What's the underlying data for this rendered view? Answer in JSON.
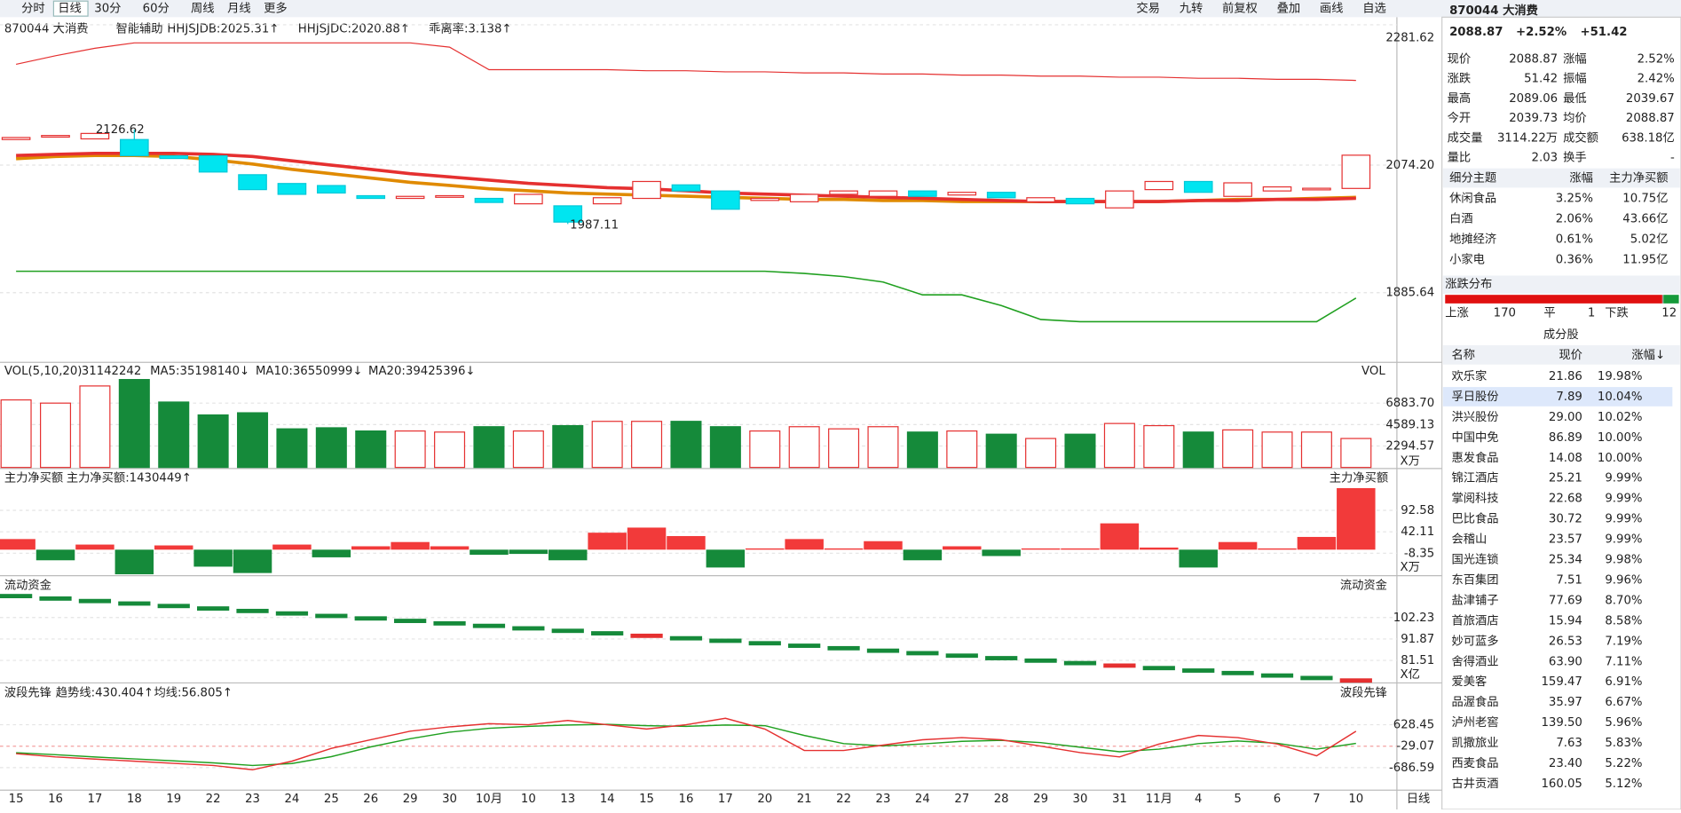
{
  "toolbar": {
    "left": [
      "分时",
      "日线",
      "30分",
      "60分",
      "周线",
      "月线",
      "更多"
    ],
    "right": [
      "交易",
      "九转",
      "前复权",
      "叠加",
      "画线",
      "自选"
    ]
  },
  "main": {
    "code_label": "870044 大消费",
    "assist": "智能辅助",
    "legend": [
      {
        "text": "HHJSJDB:2025.31↑",
        "color": "#e08a00"
      },
      {
        "text": "HHJSJDC:2020.88↑",
        "color": "#e53030"
      },
      {
        "text": "乖离率:3.138↑",
        "color": "#e08a00"
      }
    ],
    "price_ticks": [
      2281.62,
      {
        "value": 2074.2,
        "label": "2074.20"
      },
      1885.64
    ],
    "high_label": "2126.62",
    "high": 2126.62,
    "low_label": "1987.11",
    "low": 1987.11,
    "candles": [
      [
        2112,
        2115
      ],
      [
        2116,
        2118
      ],
      [
        2113,
        2121
      ],
      [
        2112,
        2088
      ],
      [
        2088,
        2084
      ],
      [
        2088,
        2064
      ],
      [
        2060,
        2038
      ],
      [
        2047,
        2031
      ],
      [
        2044,
        2033
      ],
      [
        2029,
        2025
      ],
      [
        2025,
        2028
      ],
      [
        2027,
        2029
      ],
      [
        2025,
        2019
      ],
      [
        2017,
        2031
      ],
      [
        2014,
        1990
      ],
      [
        2017,
        2026
      ],
      [
        2025,
        2050
      ],
      [
        2045,
        2036
      ],
      [
        2036,
        2009
      ],
      [
        2022,
        2025
      ],
      [
        2020,
        2031
      ],
      [
        2031,
        2036
      ],
      [
        2028,
        2036
      ],
      [
        2036,
        2028
      ],
      [
        2030,
        2034
      ],
      [
        2034,
        2026
      ],
      [
        2020,
        2026
      ],
      [
        2025,
        2017
      ],
      [
        2011,
        2036
      ],
      [
        2038,
        2050
      ],
      [
        2050,
        2034
      ],
      [
        2028,
        2048
      ],
      [
        2036,
        2042
      ],
      [
        2038,
        2040
      ],
      [
        2039.73,
        2088.87
      ]
    ],
    "upper": [
      2223.2,
      2235.9,
      2246.9,
      2254.9,
      2254.9,
      2254.9,
      2254.9,
      2254.9,
      2254.9,
      2254.9,
      2254.9,
      2248.6,
      2215.3,
      2215.3,
      2215.3,
      2215.3,
      2213.7,
      2213.7,
      2212.1,
      2212.1,
      2210.5,
      2210.5,
      2208.9,
      2208.9,
      2207.3,
      2207.3,
      2205.8,
      2205.8,
      2204.2,
      2204.2,
      2202.6,
      2202.6,
      2201.0,
      2201.0,
      2199.4
    ],
    "lower": [
      1917.3,
      1917.3,
      1917.3,
      1917.3,
      1917.3,
      1917.3,
      1917.3,
      1917.3,
      1917.3,
      1917.3,
      1917.3,
      1917.3,
      1917.3,
      1917.3,
      1917.3,
      1917.3,
      1917.3,
      1917.3,
      1917.3,
      1917.3,
      1914.1,
      1909.4,
      1901.4,
      1882.4,
      1882.4,
      1866.6,
      1846.0,
      1842.8,
      1842.8,
      1842.8,
      1842.8,
      1842.8,
      1842.8,
      1842.8,
      1877.7
    ],
    "ma1": [
      2088.5,
      2090.0,
      2091.6,
      2091.6,
      2091.6,
      2090.0,
      2086.9,
      2080.5,
      2074.2,
      2067.9,
      2061.5,
      2056.8,
      2052.0,
      2047.3,
      2044.1,
      2040.9,
      2039.3,
      2036.2,
      2033.0,
      2031.4,
      2029.8,
      2028.2,
      2026.6,
      2025.1,
      2023.5,
      2021.9,
      2020.3,
      2020.3,
      2020.3,
      2020.3,
      2021.9,
      2021.9,
      2023.5,
      2023.5,
      2025.1
    ],
    "ma2": [
      2083.7,
      2086.9,
      2088.5,
      2088.5,
      2086.9,
      2082.1,
      2075.8,
      2067.9,
      2061.5,
      2055.2,
      2048.8,
      2044.1,
      2039.3,
      2036.2,
      2033.0,
      2031.4,
      2029.8,
      2028.2,
      2026.6,
      2025.1,
      2023.5,
      2023.5,
      2021.9,
      2021.9,
      2020.3,
      2020.3,
      2020.3,
      2020.3,
      2020.3,
      2020.3,
      2021.9,
      2023.5,
      2023.5,
      2025.1,
      2026.6
    ]
  },
  "vol": {
    "label": "VOL(5,10,20)",
    "value": "31142242",
    "legend": [
      {
        "text": "MA5:35198140↓",
        "color": "#e08a00"
      },
      {
        "text": "MA10:36550999↓",
        "color": "#d020d0"
      },
      {
        "text": "MA20:39425396↓",
        "color": "#20a020"
      }
    ],
    "right_label": "VOL",
    "unit": "X万",
    "ticks": [
      {
        "value": 6883.7,
        "label": "6883.70"
      },
      4589.13,
      2294.57
    ],
    "values": [
      7228,
      6884,
      8719,
      9408,
      6999,
      5622,
      5851,
      4130,
      4245,
      3901,
      3901,
      3786,
      4360,
      3901,
      4474,
      4933,
      4933,
      4933,
      4360,
      3901,
      4360,
      4130,
      4360,
      3786,
      3901,
      3557,
      3098,
      3557,
      4704,
      4474,
      3786,
      4016,
      3786,
      3786,
      3098
    ]
  },
  "net": {
    "label": "主力净买额",
    "legend": "主力净买额:1430449↑",
    "right_label": "主力净买额",
    "unit": "X万",
    "ticks": [
      92.58,
      42.11,
      -8.35
    ],
    "values": [
      25,
      -25,
      12,
      -58,
      10,
      -40,
      -55,
      12,
      -18,
      8,
      18,
      8,
      -12,
      -10,
      -25,
      40,
      52,
      32,
      -42,
      3,
      25,
      3,
      20,
      -25,
      8,
      -15,
      3,
      3,
      62,
      5,
      -42,
      18,
      3,
      30,
      145
    ]
  },
  "flow": {
    "label": "流动资金",
    "right_label": "流动资金",
    "unit": "X亿",
    "ticks": [
      102.23,
      91.87,
      81.51
    ],
    "values": [
      112.6,
      111.4,
      110.2,
      109.0,
      107.8,
      106.6,
      105.4,
      104.2,
      103.0,
      101.8,
      100.6,
      99.4,
      98.2,
      97.0,
      95.8,
      94.6,
      93.4,
      92.2,
      91.0,
      89.8,
      88.6,
      87.4,
      86.2,
      85.0,
      83.8,
      82.6,
      81.4,
      80.2,
      79.0,
      77.8,
      76.6,
      75.4,
      74.2,
      73.0,
      71.8
    ]
  },
  "wave": {
    "label": "波段先锋",
    "right_label": "波段先锋",
    "legend": [
      {
        "text": "趋势线:430.404↑",
        "color": "#e53030"
      },
      {
        "text": "均线:56.805↑",
        "color": "#20a020"
      }
    ],
    "ticks": [
      628.45,
      -29.07,
      -686.59
    ],
    "trend": [
      -259,
      -358,
      -424,
      -489,
      -555,
      -621,
      -752,
      -489,
      -95,
      168,
      431,
      563,
      661,
      628,
      760,
      628,
      497,
      628,
      826,
      497,
      -161,
      -161,
      4,
      168,
      234,
      168,
      -29,
      -226,
      -358,
      37,
      300,
      234,
      37,
      -325,
      430.404
    ],
    "avg": [
      -230,
      -290,
      -360,
      -420,
      -480,
      -540,
      -620,
      -560,
      -350,
      -50,
      200,
      400,
      520,
      580,
      620,
      640,
      600,
      580,
      620,
      600,
      300,
      50,
      -20,
      40,
      120,
      150,
      80,
      -60,
      -200,
      -120,
      50,
      130,
      60,
      -120,
      56.805
    ]
  },
  "dates": [
    "15",
    "16",
    "17",
    "18",
    "19",
    "22",
    "23",
    "24",
    "25",
    "26",
    "29",
    "30",
    "10月",
    "10",
    "13",
    "14",
    "15",
    "16",
    "17",
    "20",
    "21",
    "22",
    "23",
    "24",
    "27",
    "28",
    "29",
    "30",
    "31",
    "11月",
    "4",
    "5",
    "6",
    "7",
    "10"
  ],
  "period_label": "日线",
  "quote": {
    "name": "870044 大消费",
    "price": "2088.87",
    "pct": "+2.52%",
    "chg": "+51.42",
    "fields": [
      [
        "现价",
        "2088.87",
        "涨幅",
        "2.52%"
      ],
      [
        "涨跌",
        "51.42",
        "振幅",
        "2.42%"
      ],
      [
        "最高",
        "2089.06",
        "最低",
        "2039.67"
      ],
      [
        "今开",
        "2039.73",
        "均价",
        "2088.87"
      ],
      [
        "成交量",
        "3114.22万",
        "成交额",
        "638.18亿"
      ],
      [
        "量比",
        "2.03",
        "换手",
        "-"
      ]
    ],
    "themes": {
      "header": [
        "细分主题",
        "涨幅",
        "主力净买额"
      ],
      "rows": [
        [
          "休闲食品",
          "3.25%",
          "10.75亿"
        ],
        [
          "白酒",
          "2.06%",
          "43.66亿"
        ],
        [
          "地摊经济",
          "0.61%",
          "5.02亿"
        ],
        [
          "小家电",
          "0.36%",
          "11.95亿"
        ]
      ]
    },
    "dist": {
      "title": "涨跌分布",
      "up_label": "上涨",
      "up": 170,
      "flat_label": "平",
      "flat": 1,
      "down_label": "下跌",
      "down": 12
    },
    "stocks": {
      "title": "成分股",
      "header": [
        "名称",
        "现价",
        "涨幅↓"
      ],
      "rows": [
        {
          "name": "欢乐家",
          "price": "21.86",
          "pct": "19.98%",
          "color": "#2a6ad8"
        },
        {
          "name": "孚日股份",
          "price": "7.89",
          "pct": "10.04%",
          "color": "#2a6ad8"
        },
        {
          "name": "洪兴股份",
          "price": "29.00",
          "pct": "10.02%",
          "color": "#222"
        },
        {
          "name": "中国中免",
          "price": "86.89",
          "pct": "10.00%",
          "color": "#222"
        },
        {
          "name": "惠发食品",
          "price": "14.08",
          "pct": "10.00%",
          "color": "#1a9a3a"
        },
        {
          "name": "锦江酒店",
          "price": "25.21",
          "pct": "9.99%",
          "color": "#222"
        },
        {
          "name": "掌阅科技",
          "price": "22.68",
          "pct": "9.99%",
          "color": "#2a6ad8"
        },
        {
          "name": "巴比食品",
          "price": "30.72",
          "pct": "9.99%",
          "color": "#222"
        },
        {
          "name": "会稽山",
          "price": "23.57",
          "pct": "9.99%",
          "color": "#2a6ad8"
        },
        {
          "name": "国光连锁",
          "price": "25.34",
          "pct": "9.98%",
          "color": "#222"
        },
        {
          "name": "东百集团",
          "price": "7.51",
          "pct": "9.96%",
          "color": "#222"
        },
        {
          "name": "盐津铺子",
          "price": "77.69",
          "pct": "8.70%",
          "color": "#222"
        },
        {
          "name": "首旅酒店",
          "price": "15.94",
          "pct": "8.58%",
          "color": "#222"
        },
        {
          "name": "妙可蓝多",
          "price": "26.53",
          "pct": "7.19%",
          "color": "#222"
        },
        {
          "name": "舍得酒业",
          "price": "63.90",
          "pct": "7.11%",
          "color": "#222"
        },
        {
          "name": "爱美客",
          "price": "159.47",
          "pct": "6.91%",
          "color": "#222"
        },
        {
          "name": "品渥食品",
          "price": "35.97",
          "pct": "6.67%",
          "color": "#222"
        },
        {
          "name": "泸州老窖",
          "price": "139.50",
          "pct": "5.96%",
          "color": "#222"
        },
        {
          "name": "凯撒旅业",
          "price": "7.63",
          "pct": "5.83%",
          "color": "#222"
        },
        {
          "name": "西麦食品",
          "price": "23.40",
          "pct": "5.22%",
          "color": "#222"
        },
        {
          "name": "古井贡酒",
          "price": "160.05",
          "pct": "5.12%",
          "color": "#222"
        }
      ]
    }
  }
}
